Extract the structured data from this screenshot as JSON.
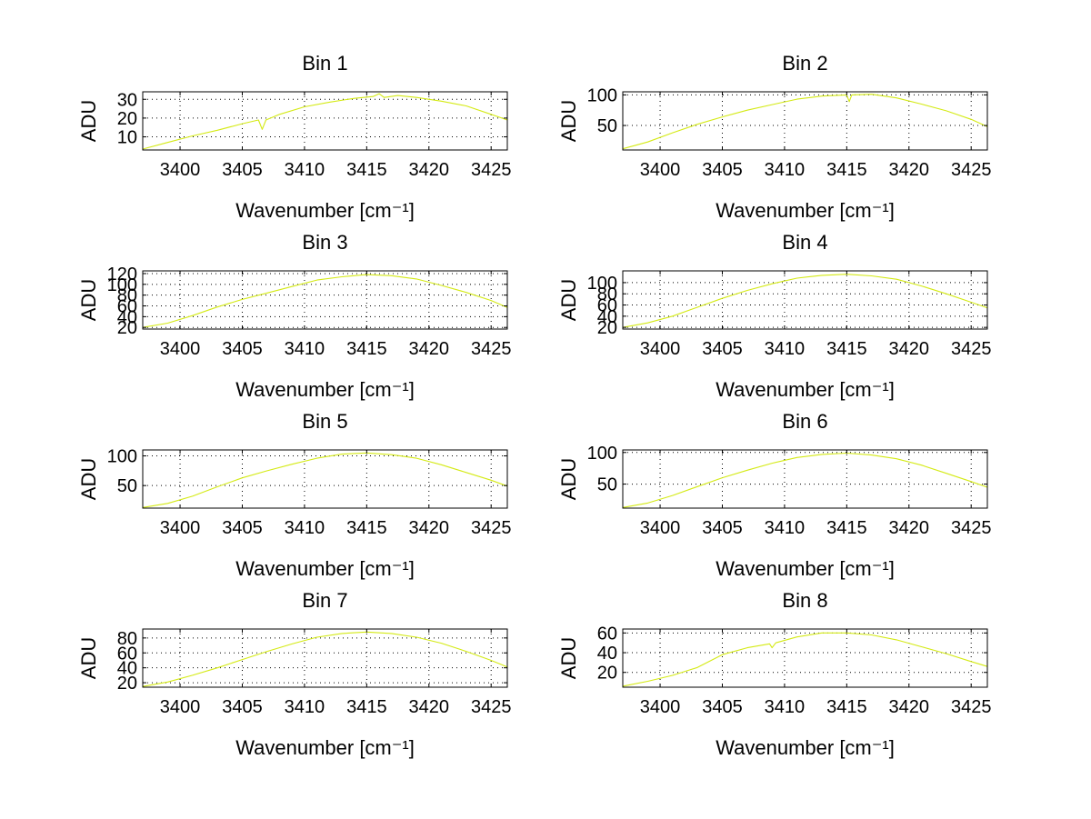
{
  "chart_data": [
    {
      "type": "line",
      "title": "Bin 1",
      "xlabel": "Wavenumber [cm⁻¹]",
      "ylabel": "ADU",
      "xlim": [
        3397,
        3426.3
      ],
      "ylim": [
        3,
        34
      ],
      "xticks": [
        3400,
        3405,
        3410,
        3415,
        3420,
        3425
      ],
      "yticks": [
        10,
        20,
        30
      ],
      "grid": true,
      "color": "#d4ea14",
      "series": [
        {
          "x": [
            3397,
            3399,
            3401,
            3403,
            3405,
            3406.3,
            3406.6,
            3406.9,
            3408,
            3410,
            3412,
            3414,
            3415.5,
            3416,
            3416.4,
            3417.5,
            3419,
            3421,
            3423,
            3425,
            3426.3
          ],
          "y": [
            3.5,
            7,
            10.5,
            13.5,
            17,
            19,
            14,
            19,
            22,
            26,
            28.5,
            30.5,
            31.5,
            33,
            31,
            32,
            31,
            29,
            26.5,
            22,
            19
          ]
        }
      ]
    },
    {
      "type": "line",
      "title": "Bin 2",
      "xlabel": "Wavenumber [cm⁻¹]",
      "ylabel": "ADU",
      "xlim": [
        3397,
        3426.3
      ],
      "ylim": [
        10,
        105
      ],
      "xticks": [
        3400,
        3405,
        3410,
        3415,
        3420,
        3425
      ],
      "yticks": [
        50,
        100
      ],
      "grid": true,
      "color": "#d4ea14",
      "series": [
        {
          "x": [
            3397,
            3399,
            3401,
            3403,
            3405,
            3407,
            3409,
            3411,
            3413,
            3415,
            3415.2,
            3415.4,
            3417,
            3419,
            3421,
            3423,
            3425,
            3426.3
          ],
          "y": [
            12,
            23,
            38,
            52,
            64,
            75,
            84,
            93,
            98,
            100,
            89,
            100,
            101,
            95,
            85,
            74,
            60,
            48
          ]
        }
      ]
    },
    {
      "type": "line",
      "title": "Bin 3",
      "xlabel": "Wavenumber [cm⁻¹]",
      "ylabel": "ADU",
      "xlim": [
        3397,
        3426.3
      ],
      "ylim": [
        17,
        125
      ],
      "xticks": [
        3400,
        3405,
        3410,
        3415,
        3420,
        3425
      ],
      "yticks": [
        20,
        40,
        60,
        80,
        100,
        120
      ],
      "grid": true,
      "color": "#d4ea14",
      "series": [
        {
          "x": [
            3397,
            3399,
            3401,
            3403,
            3405,
            3407,
            3409,
            3411,
            3413,
            3415,
            3417,
            3419,
            3421,
            3423,
            3425,
            3426.3
          ],
          "y": [
            20,
            28,
            42,
            58,
            72,
            84,
            96,
            108,
            114,
            118,
            116,
            110,
            98,
            85,
            70,
            57
          ]
        }
      ]
    },
    {
      "type": "line",
      "title": "Bin 4",
      "xlabel": "Wavenumber [cm⁻¹]",
      "ylabel": "ADU",
      "xlim": [
        3397,
        3426.3
      ],
      "ylim": [
        17,
        121
      ],
      "xticks": [
        3400,
        3405,
        3410,
        3415,
        3420,
        3425
      ],
      "yticks": [
        20,
        40,
        60,
        80,
        100
      ],
      "grid": true,
      "color": "#d4ea14",
      "series": [
        {
          "x": [
            3397,
            3399,
            3401,
            3403,
            3405,
            3407,
            3409,
            3411,
            3413,
            3415,
            3417,
            3419,
            3421,
            3423,
            3425,
            3426.3
          ],
          "y": [
            20,
            28,
            40,
            56,
            72,
            86,
            98,
            108,
            113,
            115,
            112,
            106,
            94,
            80,
            65,
            55
          ]
        }
      ]
    },
    {
      "type": "line",
      "title": "Bin 5",
      "xlabel": "Wavenumber [cm⁻¹]",
      "ylabel": "ADU",
      "xlim": [
        3397,
        3426.3
      ],
      "ylim": [
        12,
        110
      ],
      "xticks": [
        3400,
        3405,
        3410,
        3415,
        3420,
        3425
      ],
      "yticks": [
        50,
        100
      ],
      "grid": true,
      "color": "#d4ea14",
      "series": [
        {
          "x": [
            3397,
            3399,
            3401,
            3403,
            3405,
            3407,
            3409,
            3411,
            3413,
            3415,
            3417,
            3419,
            3421,
            3423,
            3425,
            3426.3
          ],
          "y": [
            13,
            20,
            32,
            48,
            63,
            75,
            86,
            96,
            103,
            105,
            102,
            96,
            85,
            72,
            59,
            49
          ]
        }
      ]
    },
    {
      "type": "line",
      "title": "Bin 6",
      "xlabel": "Wavenumber [cm⁻¹]",
      "ylabel": "ADU",
      "xlim": [
        3397,
        3426.3
      ],
      "ylim": [
        12,
        104
      ],
      "xticks": [
        3400,
        3405,
        3410,
        3415,
        3420,
        3425
      ],
      "yticks": [
        50,
        100
      ],
      "grid": true,
      "color": "#d4ea14",
      "series": [
        {
          "x": [
            3397,
            3399,
            3401,
            3403,
            3405,
            3407,
            3409,
            3411,
            3413,
            3415,
            3417,
            3419,
            3421,
            3423,
            3425,
            3426.3
          ],
          "y": [
            13,
            20,
            32,
            46,
            60,
            72,
            83,
            92,
            97,
            99,
            96,
            90,
            80,
            67,
            54,
            45
          ]
        }
      ]
    },
    {
      "type": "line",
      "title": "Bin 7",
      "xlabel": "Wavenumber [cm⁻¹]",
      "ylabel": "ADU",
      "xlim": [
        3397,
        3426.3
      ],
      "ylim": [
        14,
        92
      ],
      "xticks": [
        3400,
        3405,
        3410,
        3415,
        3420,
        3425
      ],
      "yticks": [
        20,
        40,
        60,
        80
      ],
      "grid": true,
      "color": "#d4ea14",
      "series": [
        {
          "x": [
            3397,
            3399,
            3401,
            3403,
            3405,
            3407,
            3409,
            3411,
            3413,
            3415,
            3417,
            3419,
            3421,
            3423,
            3425,
            3426.3
          ],
          "y": [
            15,
            21,
            30,
            40,
            51,
            62,
            72,
            81,
            86,
            88,
            86,
            81,
            73,
            62,
            50,
            41
          ]
        }
      ]
    },
    {
      "type": "line",
      "title": "Bin 8",
      "xlabel": "Wavenumber [cm⁻¹]",
      "ylabel": "ADU",
      "xlim": [
        3397,
        3426.3
      ],
      "ylim": [
        5,
        64
      ],
      "xticks": [
        3400,
        3405,
        3410,
        3415,
        3420,
        3425
      ],
      "yticks": [
        20,
        40,
        60
      ],
      "grid": true,
      "color": "#d4ea14",
      "series": [
        {
          "x": [
            3397,
            3399,
            3401,
            3403,
            3405,
            3407,
            3408.8,
            3409,
            3409.3,
            3411,
            3413,
            3415,
            3417,
            3419,
            3421,
            3423,
            3425,
            3426.3
          ],
          "y": [
            6,
            11,
            17,
            25,
            38,
            45,
            49,
            45,
            50,
            56,
            60,
            60,
            58,
            53,
            46,
            39,
            31,
            26
          ]
        }
      ]
    }
  ]
}
